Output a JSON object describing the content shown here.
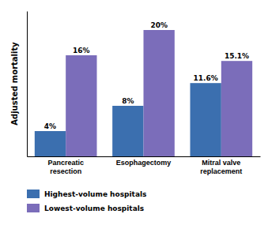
{
  "chart_data": {
    "type": "bar",
    "categories": [
      "Pancreatic\nresection",
      "Esophagectomy",
      "Mitral valve\nreplacement"
    ],
    "series": [
      {
        "name": "Highest-volume hospitals",
        "color": "#3b6faf",
        "values": [
          4,
          8,
          11.6
        ],
        "value_labels": [
          "4%",
          "8%",
          "11.6%"
        ]
      },
      {
        "name": "Lowest-volume hospitals",
        "color": "#7b6dba",
        "values": [
          16,
          20,
          15.1
        ],
        "value_labels": [
          "16%",
          "20%",
          "15.1%"
        ]
      }
    ],
    "ylabel": "Adjusted mortality",
    "ylim": [
      0,
      23
    ],
    "yticks": [],
    "tick_labels": "x",
    "data_labels": true,
    "legend": "bottom",
    "grid": false
  }
}
